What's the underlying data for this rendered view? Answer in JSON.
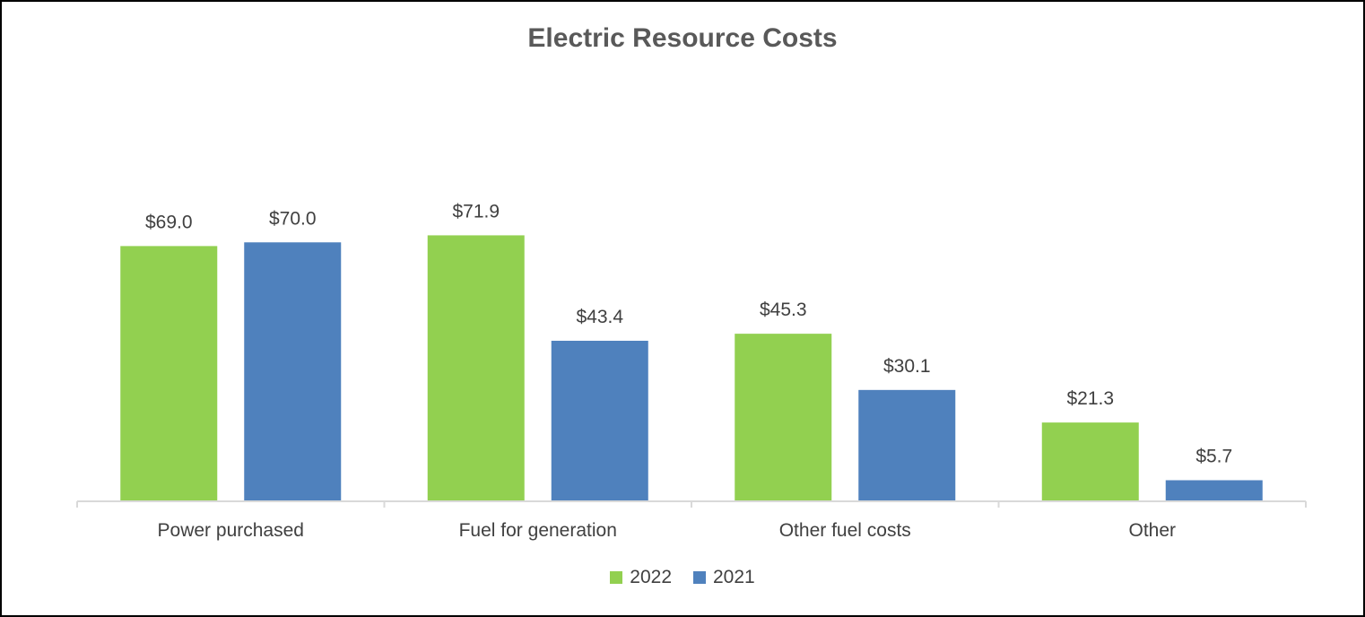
{
  "chart_data": {
    "type": "bar",
    "title": "Electric Resource Costs",
    "categories": [
      "Power purchased",
      "Fuel for generation",
      "Other fuel costs",
      "Other"
    ],
    "series": [
      {
        "name": "2022",
        "color": "#92d050",
        "values": [
          69.0,
          71.9,
          45.3,
          21.3
        ],
        "labels": [
          "$69.0",
          "$71.9",
          "$45.3",
          "$21.3"
        ]
      },
      {
        "name": "2021",
        "color": "#4f81bd",
        "values": [
          70.0,
          43.4,
          30.1,
          5.7
        ],
        "labels": [
          "$70.0",
          "$43.4",
          "$30.1",
          "$5.7"
        ]
      }
    ],
    "xlabel": "",
    "ylabel": "",
    "ylim": [
      0,
      100
    ],
    "grid": false,
    "legend": "bottom-center"
  }
}
